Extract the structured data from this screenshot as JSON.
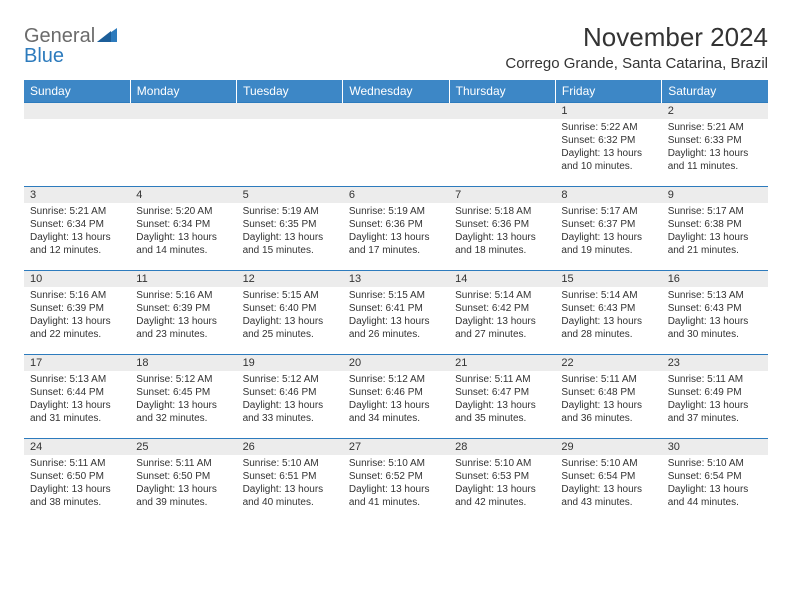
{
  "header": {
    "logo_general": "General",
    "logo_blue": "Blue",
    "month_title": "November 2024",
    "location": "Corrego Grande, Santa Catarina, Brazil"
  },
  "colors": {
    "header_bar": "#3d87c6",
    "row_divider": "#2d7bbd",
    "daynum_bg": "#ececec",
    "text": "#333333",
    "logo_gray": "#6b6b6b",
    "logo_blue": "#2d7bbd"
  },
  "weekdays": [
    "Sunday",
    "Monday",
    "Tuesday",
    "Wednesday",
    "Thursday",
    "Friday",
    "Saturday"
  ],
  "weeks": [
    [
      null,
      null,
      null,
      null,
      null,
      {
        "n": "1",
        "sunrise": "5:22 AM",
        "sunset": "6:32 PM",
        "day_h": "13",
        "day_m": "10"
      },
      {
        "n": "2",
        "sunrise": "5:21 AM",
        "sunset": "6:33 PM",
        "day_h": "13",
        "day_m": "11"
      }
    ],
    [
      {
        "n": "3",
        "sunrise": "5:21 AM",
        "sunset": "6:34 PM",
        "day_h": "13",
        "day_m": "12"
      },
      {
        "n": "4",
        "sunrise": "5:20 AM",
        "sunset": "6:34 PM",
        "day_h": "13",
        "day_m": "14"
      },
      {
        "n": "5",
        "sunrise": "5:19 AM",
        "sunset": "6:35 PM",
        "day_h": "13",
        "day_m": "15"
      },
      {
        "n": "6",
        "sunrise": "5:19 AM",
        "sunset": "6:36 PM",
        "day_h": "13",
        "day_m": "17"
      },
      {
        "n": "7",
        "sunrise": "5:18 AM",
        "sunset": "6:36 PM",
        "day_h": "13",
        "day_m": "18"
      },
      {
        "n": "8",
        "sunrise": "5:17 AM",
        "sunset": "6:37 PM",
        "day_h": "13",
        "day_m": "19"
      },
      {
        "n": "9",
        "sunrise": "5:17 AM",
        "sunset": "6:38 PM",
        "day_h": "13",
        "day_m": "21"
      }
    ],
    [
      {
        "n": "10",
        "sunrise": "5:16 AM",
        "sunset": "6:39 PM",
        "day_h": "13",
        "day_m": "22"
      },
      {
        "n": "11",
        "sunrise": "5:16 AM",
        "sunset": "6:39 PM",
        "day_h": "13",
        "day_m": "23"
      },
      {
        "n": "12",
        "sunrise": "5:15 AM",
        "sunset": "6:40 PM",
        "day_h": "13",
        "day_m": "25"
      },
      {
        "n": "13",
        "sunrise": "5:15 AM",
        "sunset": "6:41 PM",
        "day_h": "13",
        "day_m": "26"
      },
      {
        "n": "14",
        "sunrise": "5:14 AM",
        "sunset": "6:42 PM",
        "day_h": "13",
        "day_m": "27"
      },
      {
        "n": "15",
        "sunrise": "5:14 AM",
        "sunset": "6:43 PM",
        "day_h": "13",
        "day_m": "28"
      },
      {
        "n": "16",
        "sunrise": "5:13 AM",
        "sunset": "6:43 PM",
        "day_h": "13",
        "day_m": "30"
      }
    ],
    [
      {
        "n": "17",
        "sunrise": "5:13 AM",
        "sunset": "6:44 PM",
        "day_h": "13",
        "day_m": "31"
      },
      {
        "n": "18",
        "sunrise": "5:12 AM",
        "sunset": "6:45 PM",
        "day_h": "13",
        "day_m": "32"
      },
      {
        "n": "19",
        "sunrise": "5:12 AM",
        "sunset": "6:46 PM",
        "day_h": "13",
        "day_m": "33"
      },
      {
        "n": "20",
        "sunrise": "5:12 AM",
        "sunset": "6:46 PM",
        "day_h": "13",
        "day_m": "34"
      },
      {
        "n": "21",
        "sunrise": "5:11 AM",
        "sunset": "6:47 PM",
        "day_h": "13",
        "day_m": "35"
      },
      {
        "n": "22",
        "sunrise": "5:11 AM",
        "sunset": "6:48 PM",
        "day_h": "13",
        "day_m": "36"
      },
      {
        "n": "23",
        "sunrise": "5:11 AM",
        "sunset": "6:49 PM",
        "day_h": "13",
        "day_m": "37"
      }
    ],
    [
      {
        "n": "24",
        "sunrise": "5:11 AM",
        "sunset": "6:50 PM",
        "day_h": "13",
        "day_m": "38"
      },
      {
        "n": "25",
        "sunrise": "5:11 AM",
        "sunset": "6:50 PM",
        "day_h": "13",
        "day_m": "39"
      },
      {
        "n": "26",
        "sunrise": "5:10 AM",
        "sunset": "6:51 PM",
        "day_h": "13",
        "day_m": "40"
      },
      {
        "n": "27",
        "sunrise": "5:10 AM",
        "sunset": "6:52 PM",
        "day_h": "13",
        "day_m": "41"
      },
      {
        "n": "28",
        "sunrise": "5:10 AM",
        "sunset": "6:53 PM",
        "day_h": "13",
        "day_m": "42"
      },
      {
        "n": "29",
        "sunrise": "5:10 AM",
        "sunset": "6:54 PM",
        "day_h": "13",
        "day_m": "43"
      },
      {
        "n": "30",
        "sunrise": "5:10 AM",
        "sunset": "6:54 PM",
        "day_h": "13",
        "day_m": "44"
      }
    ]
  ]
}
